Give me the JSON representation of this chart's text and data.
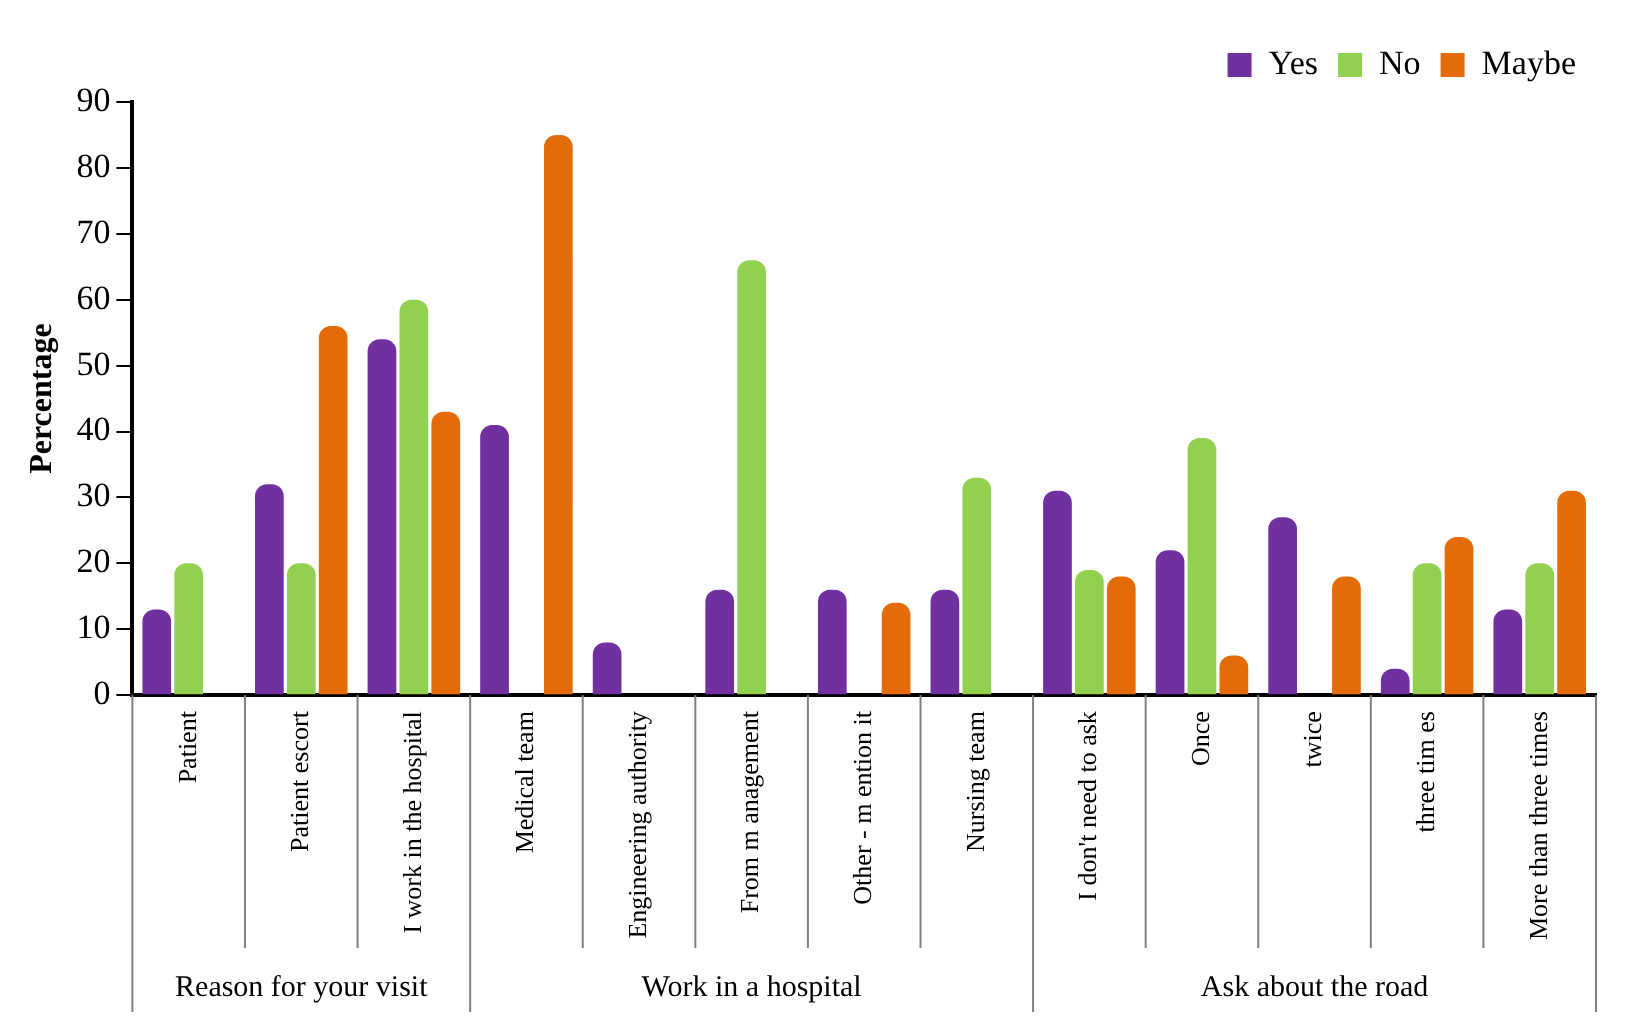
{
  "chart_data": {
    "type": "bar",
    "ylabel": "Percentage",
    "categories": [
      "Patient",
      "Patient escort",
      "I work in the hospital",
      "Medical team",
      "Engineering authority",
      "From m anagement",
      "Other - m ention it",
      "Nursing team",
      "I don't need to ask",
      "Once",
      "twice",
      "three tim es",
      "More than three times"
    ],
    "series": [
      {
        "name": "Yes",
        "color": "#7030a0",
        "values": [
          13,
          32,
          54,
          41,
          8,
          16,
          16,
          16,
          31,
          22,
          27,
          4,
          13
        ]
      },
      {
        "name": "No",
        "color": "#92d050",
        "values": [
          20,
          20,
          60,
          0,
          0,
          66,
          0,
          33,
          19,
          39,
          0,
          20,
          20
        ]
      },
      {
        "name": "Maybe",
        "color": "#e36c09",
        "values": [
          0,
          56,
          43,
          85,
          0,
          0,
          14,
          0,
          18,
          6,
          18,
          24,
          31
        ]
      }
    ],
    "ylim": [
      0,
      90
    ],
    "yticks": [
      0,
      10,
      20,
      30,
      40,
      50,
      60,
      70,
      80,
      90
    ],
    "grid": false,
    "legend": "top right",
    "annotations": [
      "Reason for your visit",
      "Work in a hospital",
      "Ask about the road"
    ]
  }
}
